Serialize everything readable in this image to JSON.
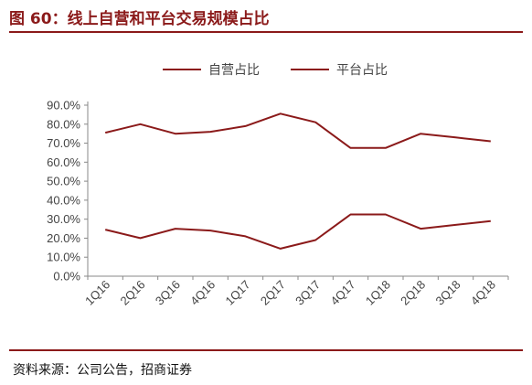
{
  "figure": {
    "title": "图 60：线上自营和平台交易规模占比",
    "source": "资料来源：公司公告，招商证券"
  },
  "chart_data": {
    "type": "line",
    "title": "",
    "xlabel": "",
    "ylabel": "",
    "categories": [
      "1Q16",
      "2Q16",
      "3Q16",
      "4Q16",
      "1Q17",
      "2Q17",
      "3Q17",
      "4Q17",
      "1Q18",
      "2Q18",
      "3Q18",
      "4Q18"
    ],
    "ylim": [
      0,
      90
    ],
    "y_ticks": [
      "0.0%",
      "10.0%",
      "20.0%",
      "30.0%",
      "40.0%",
      "50.0%",
      "60.0%",
      "70.0%",
      "80.0%",
      "90.0%"
    ],
    "series": [
      {
        "name": "自营占比",
        "values": [
          75.5,
          80,
          75,
          76,
          79,
          85.5,
          81,
          67.5,
          67.5,
          75,
          73,
          71
        ],
        "color": "#8b1a1a"
      },
      {
        "name": "平台占比",
        "values": [
          24.5,
          20,
          25,
          24,
          21,
          14.5,
          19,
          32.5,
          32.5,
          25,
          27,
          29
        ],
        "color": "#8b1a1a"
      }
    ],
    "legend_position": "top",
    "grid": false
  }
}
